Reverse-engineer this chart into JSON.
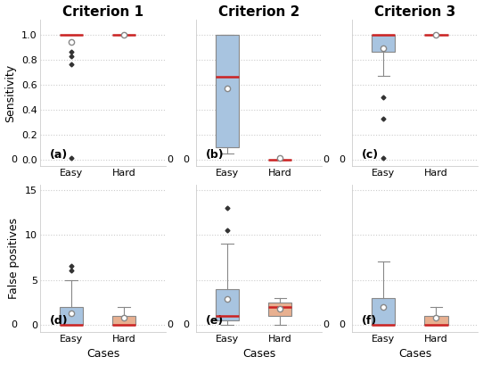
{
  "titles": [
    "Criterion 1",
    "Criterion 2",
    "Criterion 3"
  ],
  "row_labels": [
    "Sensitivity",
    "False positives"
  ],
  "col_labels": [
    "Easy",
    "Hard"
  ],
  "panel_labels": [
    "(a)",
    "(b)",
    "(c)",
    "(d)",
    "(e)",
    "(f)"
  ],
  "xlabel": "Cases",
  "sensitivity": {
    "crit1": {
      "easy": {
        "q1": 1.0,
        "median": 1.0,
        "q3": 1.0,
        "whislo": 1.0,
        "whishi": 1.0,
        "mean": 0.94,
        "fliers": [
          0.94,
          0.86,
          0.83,
          0.76,
          0.02
        ]
      },
      "hard": {
        "q1": 1.0,
        "median": 1.0,
        "q3": 1.0,
        "whislo": 1.0,
        "whishi": 1.0,
        "mean": 1.0,
        "fliers": []
      }
    },
    "crit2": {
      "easy": {
        "q1": 0.1,
        "median": 0.66,
        "q3": 1.0,
        "whislo": 0.05,
        "whishi": 1.0,
        "mean": 0.57,
        "fliers": []
      },
      "hard": {
        "q1": 0.0,
        "median": 0.0,
        "q3": 0.0,
        "whislo": 0.0,
        "whishi": 0.0,
        "mean": 0.02,
        "fliers": []
      }
    },
    "crit3": {
      "easy": {
        "q1": 0.86,
        "median": 1.0,
        "q3": 1.0,
        "whislo": 0.67,
        "whishi": 1.0,
        "mean": 0.89,
        "fliers": [
          0.5,
          0.33,
          0.02
        ]
      },
      "hard": {
        "q1": 1.0,
        "median": 1.0,
        "q3": 1.0,
        "whislo": 1.0,
        "whishi": 1.0,
        "mean": 1.0,
        "fliers": []
      }
    }
  },
  "fp": {
    "crit1": {
      "easy": {
        "q1": 0.0,
        "median": 0.0,
        "q3": 2.0,
        "whislo": 0.0,
        "whishi": 5.0,
        "mean": 1.3,
        "fliers": [
          6.5,
          6.0
        ]
      },
      "hard": {
        "q1": 0.0,
        "median": 0.0,
        "q3": 1.0,
        "whislo": 0.0,
        "whishi": 2.0,
        "mean": 0.8,
        "fliers": []
      }
    },
    "crit2": {
      "easy": {
        "q1": 0.5,
        "median": 1.0,
        "q3": 4.0,
        "whislo": 0.0,
        "whishi": 9.0,
        "mean": 2.9,
        "fliers": [
          13.0,
          10.5
        ]
      },
      "hard": {
        "q1": 1.0,
        "median": 2.0,
        "q3": 2.5,
        "whislo": 0.0,
        "whishi": 3.0,
        "mean": 1.8,
        "fliers": []
      }
    },
    "crit3": {
      "easy": {
        "q1": 0.0,
        "median": 0.0,
        "q3": 3.0,
        "whislo": 0.0,
        "whishi": 7.0,
        "mean": 2.0,
        "fliers": []
      },
      "hard": {
        "q1": 0.0,
        "median": 0.0,
        "q3": 1.0,
        "whislo": 0.0,
        "whishi": 2.0,
        "mean": 0.8,
        "fliers": []
      }
    }
  },
  "box_color_easy": "#a8c4e0",
  "box_color_hard": "#e8b090",
  "median_color": "#cc2222",
  "mean_color": "white",
  "mean_edge_color": "#888888",
  "flier_color": "#333333",
  "whisker_color": "#888888",
  "cap_color": "#888888",
  "box_edge_color": "#888888",
  "grid_color": "#cccccc",
  "bg_color": "#ffffff",
  "sensitivity_ylim": [
    -0.05,
    1.12
  ],
  "fp_ylim": [
    -0.8,
    15.5
  ],
  "sensitivity_yticks": [
    0.0,
    0.2,
    0.4,
    0.6,
    0.8,
    1.0
  ],
  "fp_yticks": [
    0,
    5,
    10,
    15
  ],
  "title_fontsize": 11,
  "label_fontsize": 9,
  "tick_fontsize": 8,
  "panel_fontsize": 9
}
